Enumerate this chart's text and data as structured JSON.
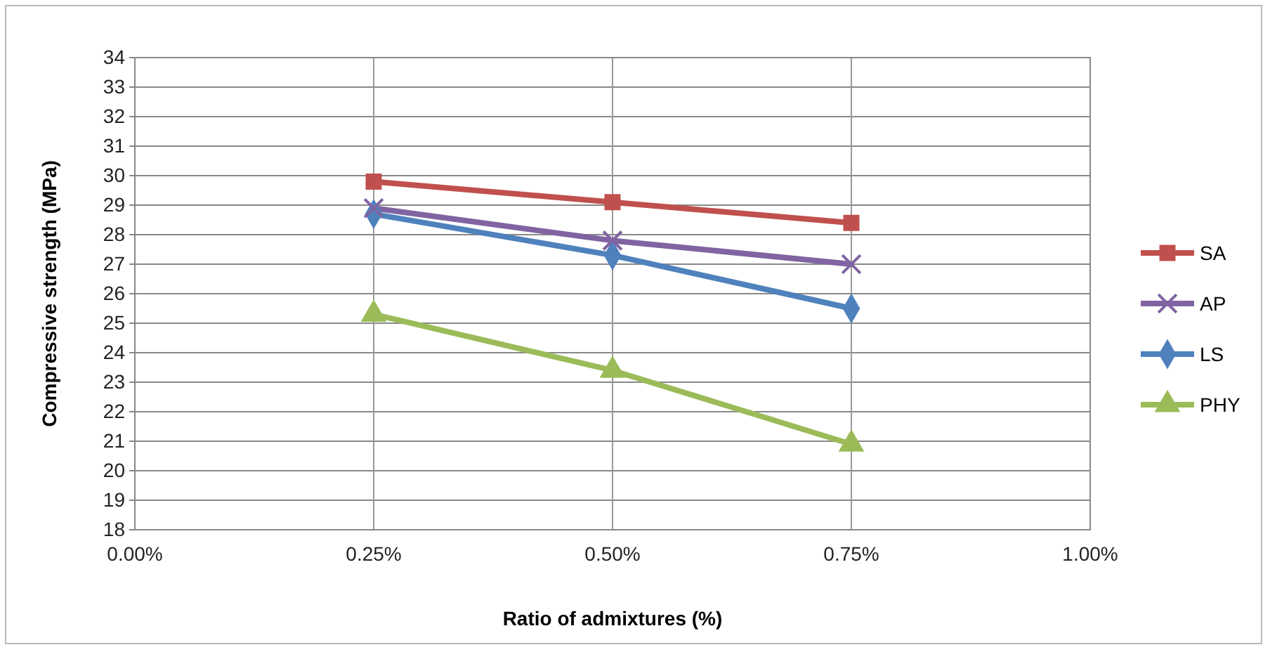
{
  "chart_data": {
    "type": "line",
    "xlabel": "Ratio of admixtures (%)",
    "ylabel": "Compressive strength (MPa)",
    "xlim": [
      0,
      1
    ],
    "xticks": [
      {
        "value": 0,
        "label": "0.00%"
      },
      {
        "value": 0.25,
        "label": "0.25%"
      },
      {
        "value": 0.5,
        "label": "0.50%"
      },
      {
        "value": 0.75,
        "label": "0.75%"
      },
      {
        "value": 1,
        "label": "1.00%"
      }
    ],
    "ylim": [
      18,
      34
    ],
    "yticks": [
      18,
      19,
      20,
      21,
      22,
      23,
      24,
      25,
      26,
      27,
      28,
      29,
      30,
      31,
      32,
      33,
      34
    ],
    "x": [
      0.25,
      0.5,
      0.75
    ],
    "grid": true,
    "legend": "right",
    "line_style": "solid",
    "series": [
      {
        "name": "SA",
        "color": "#c0504d",
        "marker": "square",
        "values": [
          29.8,
          29.1,
          28.4
        ]
      },
      {
        "name": "AP",
        "color": "#8064a2",
        "marker": "cross",
        "values": [
          28.9,
          27.8,
          27.0
        ]
      },
      {
        "name": "LS",
        "color": "#4f81bd",
        "marker": "diamond",
        "values": [
          28.7,
          27.3,
          25.5
        ]
      },
      {
        "name": "PHY",
        "color": "#9bbb59",
        "marker": "triangle",
        "values": [
          25.3,
          23.4,
          20.9
        ]
      }
    ]
  }
}
